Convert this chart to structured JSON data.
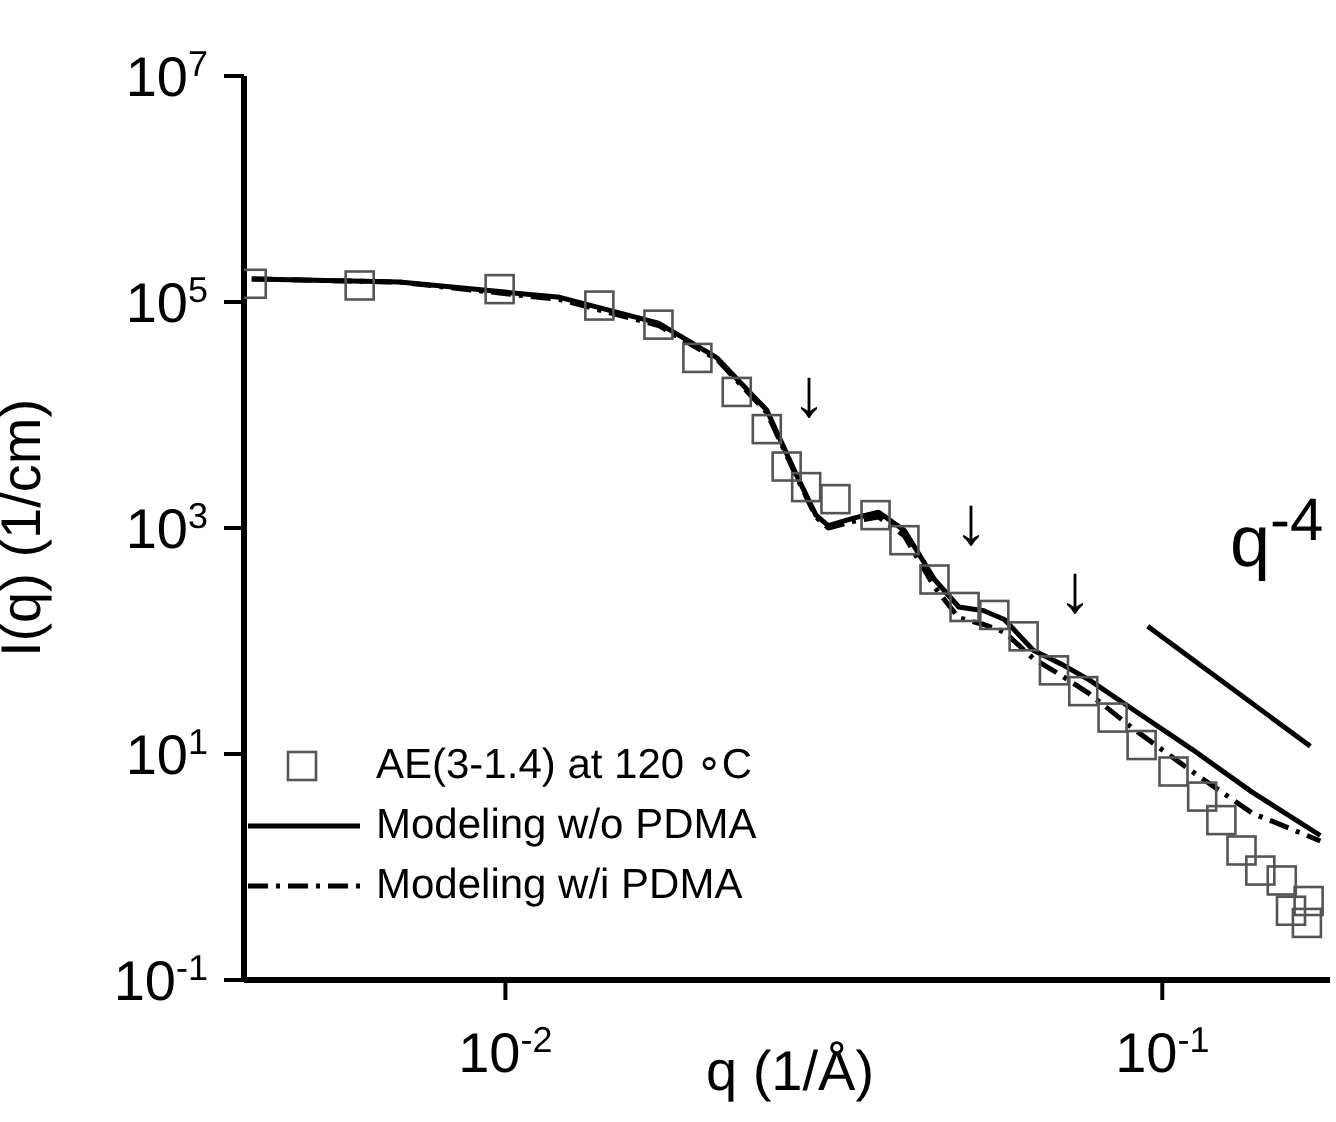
{
  "chart_data": {
    "type": "line",
    "xlabel": "q (1/Å)",
    "ylabel": "I(q) (1/cm)",
    "log": "xy",
    "grid": false,
    "legend": "bottom left",
    "xlim": [
      0.004,
      0.18
    ],
    "ylim": [
      0.1,
      10000000
    ],
    "xticks": [
      {
        "value": 0.01,
        "label": "10$^{-2}$"
      },
      {
        "value": 0.1,
        "label": "10$^{-1}$"
      }
    ],
    "yticks": [
      {
        "value": 0.1,
        "label": "10$^{-1}$"
      },
      {
        "value": 10,
        "label": "10$^{1}$"
      },
      {
        "value": 1000,
        "label": "10$^{3}$"
      },
      {
        "value": 100000,
        "label": "10$^{5}$"
      },
      {
        "value": 10000000,
        "label": "10$^{7}$"
      }
    ],
    "series": [
      {
        "name": "AE(3-1.4) at 120 ∘C",
        "type": "scatter",
        "marker": "square",
        "color": "#555555",
        "x": [
          0.00411,
          0.006,
          0.0098,
          0.0139,
          0.0171,
          0.0196,
          0.0225,
          0.025,
          0.0268,
          0.0287,
          0.0318,
          0.0366,
          0.0405,
          0.045,
          0.05,
          0.0555,
          0.0615,
          0.0684,
          0.0758,
          0.084,
          0.093,
          0.104,
          0.115,
          0.123,
          0.132,
          0.141,
          0.152,
          0.157,
          0.167,
          0.166
        ],
        "values": [
          145000,
          140000,
          130000,
          93000,
          63000,
          32000,
          16000,
          7500,
          3500,
          2300,
          1800,
          1300,
          780,
          350,
          200,
          170,
          110,
          55,
          36,
          21,
          12,
          7,
          4.2,
          2.6,
          1.4,
          0.93,
          0.76,
          0.41,
          0.5,
          0.32
        ]
      },
      {
        "name": "Modeling w/o PDMA",
        "type": "line",
        "marker": "none",
        "line_style": "solid",
        "color": "#000000",
        "x": [
          0.00411,
          0.0069,
          0.0121,
          0.0171,
          0.021,
          0.025,
          0.0277,
          0.0297,
          0.031,
          0.034,
          0.037,
          0.0405,
          0.045,
          0.049,
          0.0535,
          0.0575,
          0.0636,
          0.07,
          0.0775,
          0.09,
          0.111,
          0.137,
          0.174
        ],
        "values": [
          160000,
          150000,
          110000,
          65000,
          32000,
          11000,
          3000,
          1300,
          1050,
          1230,
          1380,
          950,
          350,
          200,
          185,
          155,
          83,
          63,
          45,
          25,
          11,
          4.6,
          1.9
        ]
      },
      {
        "name": "Modeling w/i PDMA",
        "type": "line",
        "marker": "none",
        "line_style": "dashed",
        "color": "#000000",
        "x": [
          0.00411,
          0.0069,
          0.0121,
          0.0171,
          0.021,
          0.025,
          0.0277,
          0.0297,
          0.031,
          0.034,
          0.037,
          0.0405,
          0.045,
          0.049,
          0.0535,
          0.0575,
          0.0636,
          0.07,
          0.0775,
          0.09,
          0.111,
          0.137,
          0.174
        ],
        "values": [
          160000,
          150000,
          105000,
          62000,
          31000,
          10500,
          2900,
          1250,
          1000,
          1150,
          1250,
          850,
          300,
          160,
          140,
          120,
          70,
          50,
          34,
          17,
          7,
          3,
          1.7
        ]
      },
      {
        "type": "line",
        "marker": "none",
        "line_style": "solid",
        "color": "#000000",
        "x": [
          0.095,
          0.168
        ],
        "values": [
          135,
          11.7
        ]
      }
    ],
    "annotations": [
      "q$^{-4}$",
      "↓",
      "↓",
      "↓"
    ]
  }
}
